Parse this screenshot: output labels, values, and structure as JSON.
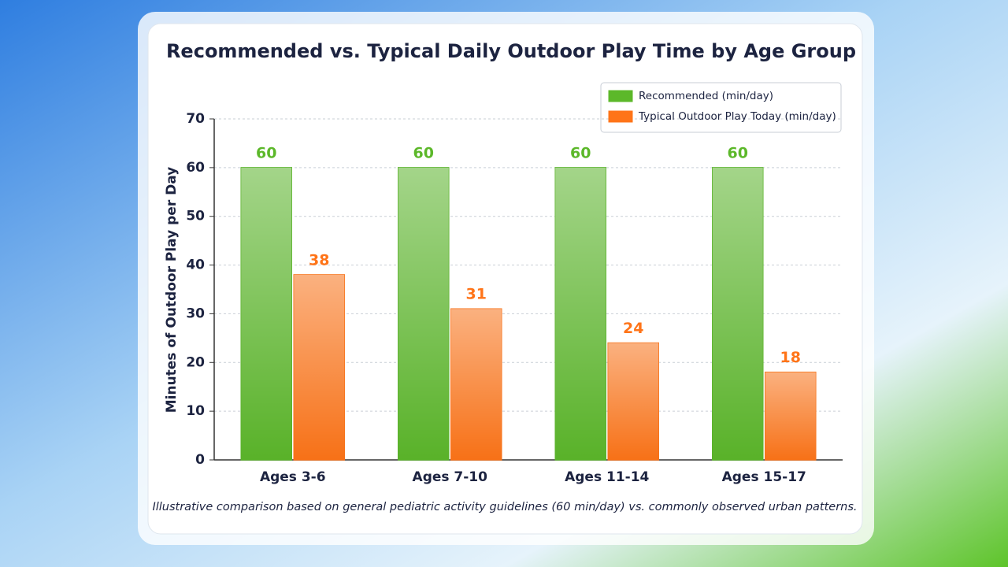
{
  "chart_data": {
    "type": "bar",
    "title": "Recommended vs. Typical Daily Outdoor Play Time by Age Group",
    "y_label": "Minutes of Outdoor Play per Day",
    "footnote": "Illustrative comparison based on general pediatric activity guidelines (60 min/day) vs. commonly observed urban patterns.",
    "categories": [
      "Ages 3-6",
      "Ages 7-10",
      "Ages 11-14",
      "Ages 15-17"
    ],
    "series": [
      {
        "name": "Recommended (min/day)",
        "color": "#5cb82a",
        "values": [
          60,
          60,
          60,
          60
        ]
      },
      {
        "name": "Typical Outdoor Play Today (min/day)",
        "color": "#ff7418",
        "values": [
          38,
          31,
          24,
          18
        ]
      }
    ],
    "ylim": [
      0,
      70
    ],
    "yticks": [
      0,
      10,
      20,
      30,
      40,
      50,
      60,
      70
    ],
    "grid": true,
    "legend": "top-right"
  }
}
